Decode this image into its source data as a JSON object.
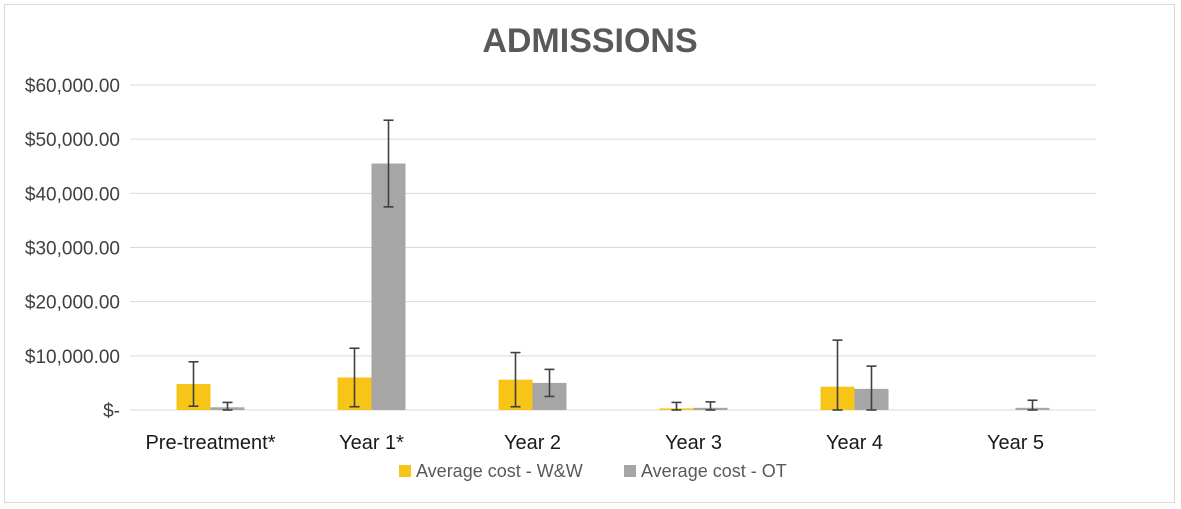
{
  "chart_data": {
    "type": "bar",
    "title": "ADMISSIONS",
    "categories": [
      "Pre-treatment*",
      "Year 1*",
      "Year 2",
      "Year 3",
      "Year 4",
      "Year 5"
    ],
    "series": [
      {
        "name": "Average cost - W&W",
        "color": "#f7c418",
        "values": [
          4800,
          6000,
          5600,
          300,
          4300,
          0
        ],
        "error": [
          4100,
          5400,
          5000,
          1100,
          8600,
          0
        ]
      },
      {
        "name": "Average cost - OT",
        "color": "#a6a6a6",
        "values": [
          500,
          45500,
          5000,
          400,
          3900,
          400
        ],
        "error": [
          900,
          8000,
          2500,
          1100,
          4200,
          1400
        ]
      }
    ],
    "ylim": [
      0,
      60000
    ],
    "yticks": [
      0,
      10000,
      20000,
      30000,
      40000,
      50000,
      60000
    ],
    "ytick_labels": [
      "$-",
      "$10,000.00",
      "$20,000.00",
      "$30,000.00",
      "$40,000.00",
      "$50,000.00",
      "$60,000.00"
    ],
    "grid": true,
    "legend_position": "bottom"
  }
}
